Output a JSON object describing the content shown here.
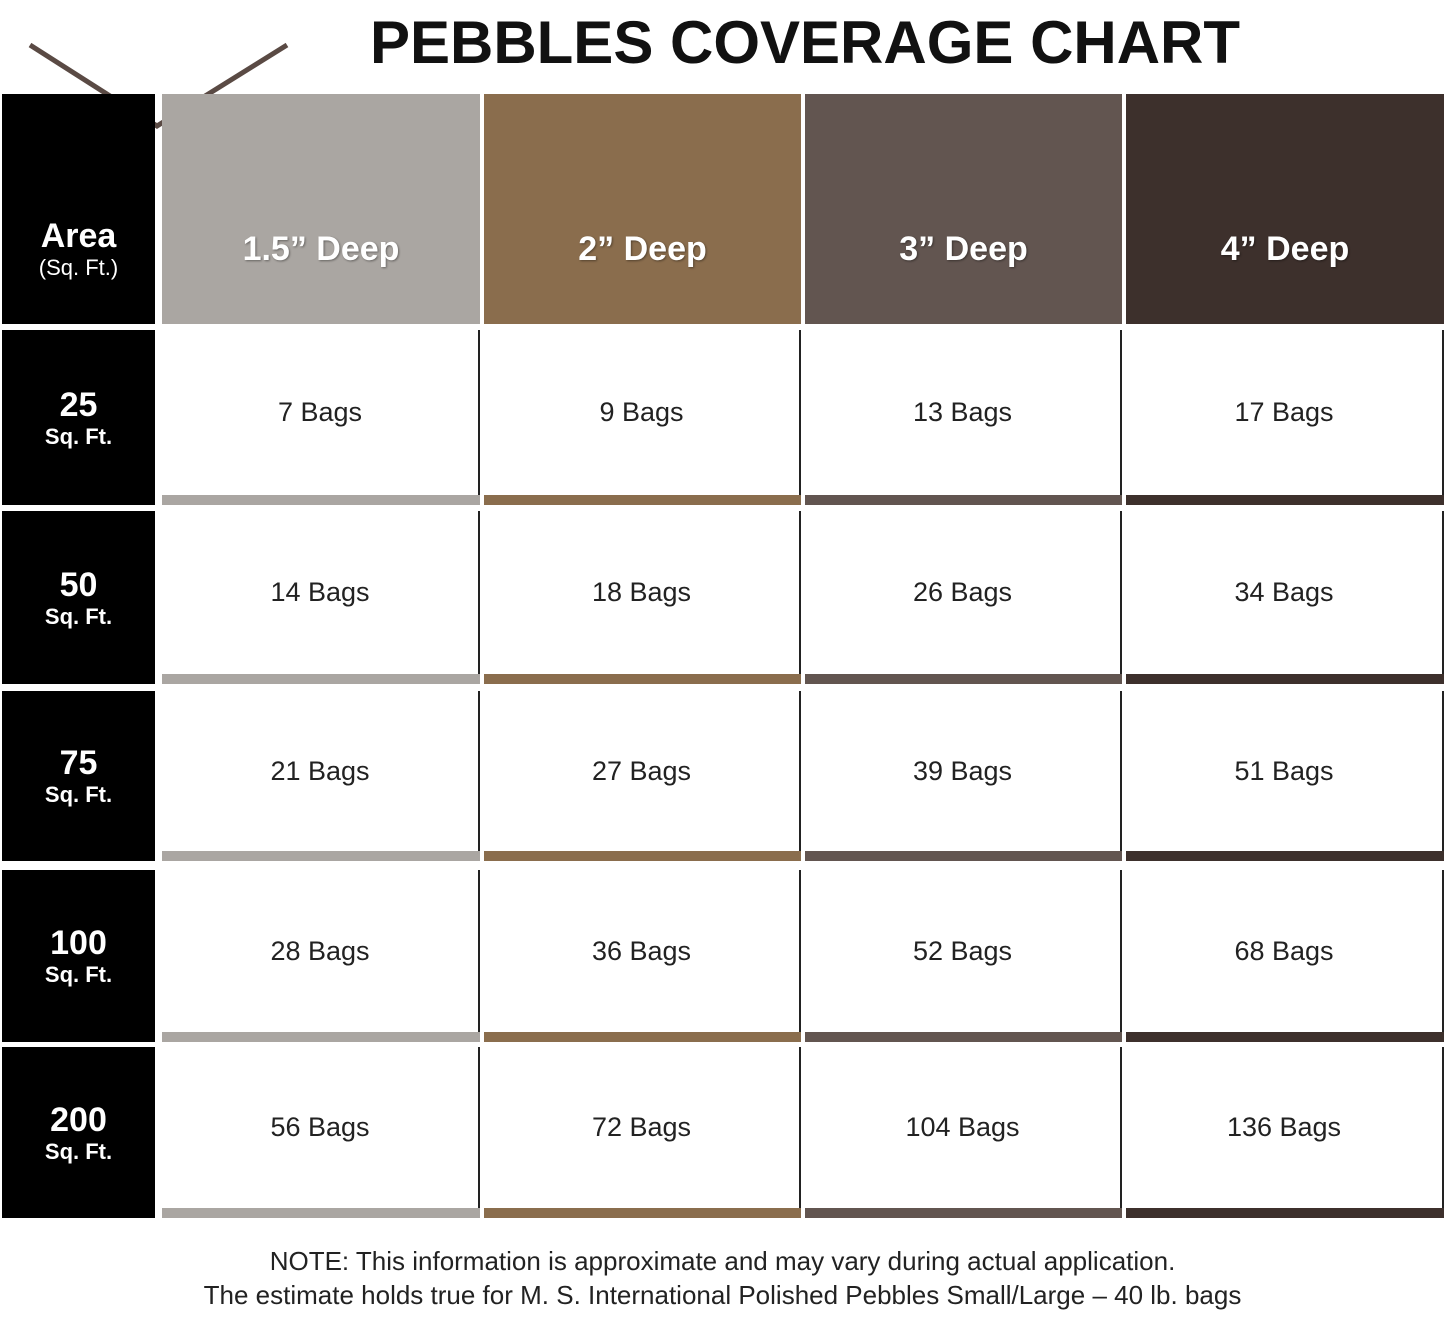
{
  "header": {
    "title": "PEBBLES COVERAGE CHART"
  },
  "table": {
    "corner": {
      "label": "Area",
      "unit": "(Sq. Ft.)"
    },
    "columns": [
      "1.5” Deep",
      "2” Deep",
      "3” Deep",
      "4” Deep"
    ],
    "rows": [
      {
        "area": "25",
        "unit": "Sq. Ft.",
        "cells": [
          "7 Bags",
          "9 Bags",
          "13 Bags",
          "17 Bags"
        ]
      },
      {
        "area": "50",
        "unit": "Sq. Ft.",
        "cells": [
          "14 Bags",
          "18 Bags",
          "26 Bags",
          "34 Bags"
        ]
      },
      {
        "area": "75",
        "unit": "Sq. Ft.",
        "cells": [
          "21 Bags",
          "27 Bags",
          "39 Bags",
          "51 Bags"
        ]
      },
      {
        "area": "100",
        "unit": "Sq. Ft.",
        "cells": [
          "28 Bags",
          "36 Bags",
          "52 Bags",
          "68 Bags"
        ]
      },
      {
        "area": "200",
        "unit": "Sq. Ft.",
        "cells": [
          "56 Bags",
          "72 Bags",
          "104 Bags",
          "136 Bags"
        ]
      }
    ]
  },
  "notes": [
    "NOTE: This information is approximate and may vary during actual application.",
    "The estimate holds true for M. S. International Polished Pebbles Small/Large – 40 lb. bags"
  ]
}
